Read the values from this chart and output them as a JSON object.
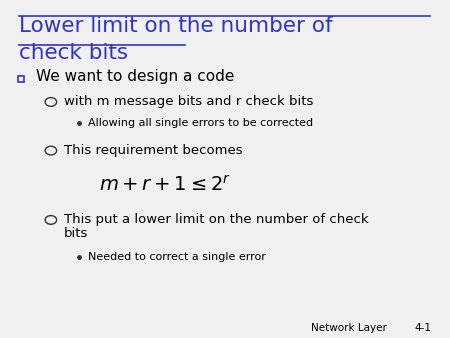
{
  "title_line1": "Lower limit on the number of",
  "title_line2": "check bits",
  "title_color": "#3333cc",
  "background_color": "#f0f0f0",
  "footer_left": "Network Layer",
  "footer_right": "4-1",
  "bullet1_text": "We want to design a code",
  "sub1_text": "with m message bits and r check bits",
  "sub1a_text": "Allowing all single errors to be corrected",
  "sub2_text": "This requirement becomes",
  "formula": "$m + r + 1 \\leq 2^{r}$",
  "sub3_text": "This put a lower limit on the number of check",
  "sub3b_text": "bits",
  "sub3a_text": "Needed to correct a single error",
  "text_color": "#000000",
  "bullet_square_color": "#3333cc",
  "circle_color": "#333333",
  "dot_color": "#333333"
}
